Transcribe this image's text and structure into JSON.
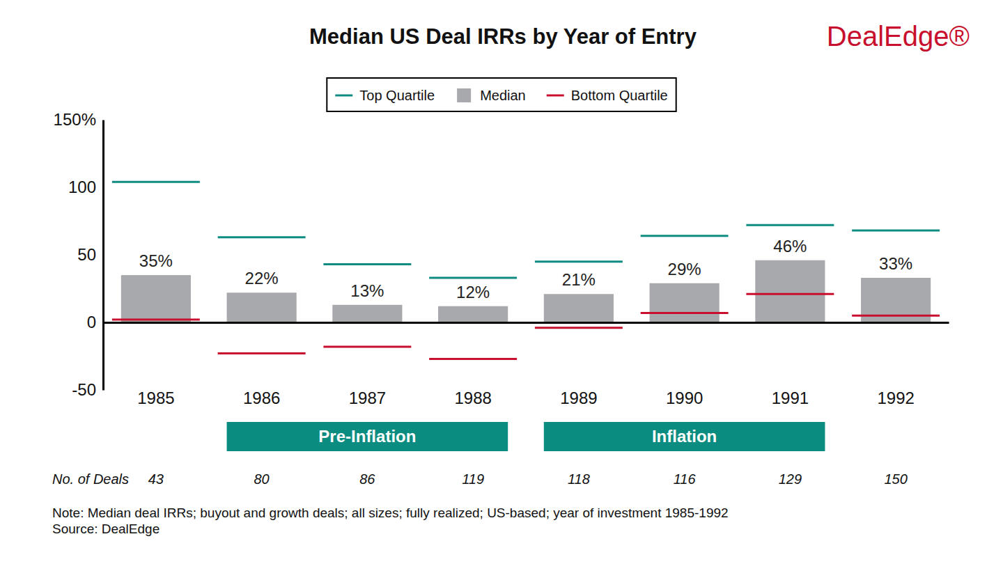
{
  "chart_data": {
    "type": "bar",
    "title": "Median US Deal IRRs by Year of Entry",
    "brand": "DealEdge®",
    "categories": [
      "1985",
      "1986",
      "1987",
      "1988",
      "1989",
      "1990",
      "1991",
      "1992"
    ],
    "series": [
      {
        "name": "Top Quartile",
        "type": "scatter",
        "marker": "dash",
        "color": "#0e8c82",
        "values": [
          104,
          63,
          43,
          33,
          45,
          64,
          72,
          68
        ]
      },
      {
        "name": "Median",
        "type": "bar",
        "color": "#a7a9ac",
        "values": [
          35,
          22,
          13,
          12,
          21,
          29,
          46,
          33
        ],
        "value_labels": [
          "35%",
          "22%",
          "13%",
          "12%",
          "21%",
          "29%",
          "46%",
          "33%"
        ]
      },
      {
        "name": "Bottom Quartile",
        "type": "scatter",
        "marker": "dash",
        "color": "#c8102e",
        "values": [
          2,
          -23,
          -18,
          -27,
          -4,
          7,
          21,
          5
        ]
      }
    ],
    "ylim": [
      -50,
      150
    ],
    "yticks": [
      {
        "value": 150,
        "label": "150%"
      },
      100,
      50,
      0,
      -50
    ],
    "grid": false,
    "legend": "top",
    "data_labels": true,
    "periods": [
      {
        "label": "Pre-Inflation",
        "start": "1986",
        "end": "1988"
      },
      {
        "label": "Inflation",
        "start": "1989",
        "end": "1991"
      }
    ],
    "deal_counts": {
      "label": "No. of Deals",
      "values": [
        43,
        80,
        86,
        119,
        118,
        116,
        129,
        150
      ]
    },
    "notes": [
      "Note: Median deal IRRs; buyout and growth deals; all sizes; fully realized; US-based; year of investment 1985-1992",
      "Source: DealEdge"
    ]
  }
}
